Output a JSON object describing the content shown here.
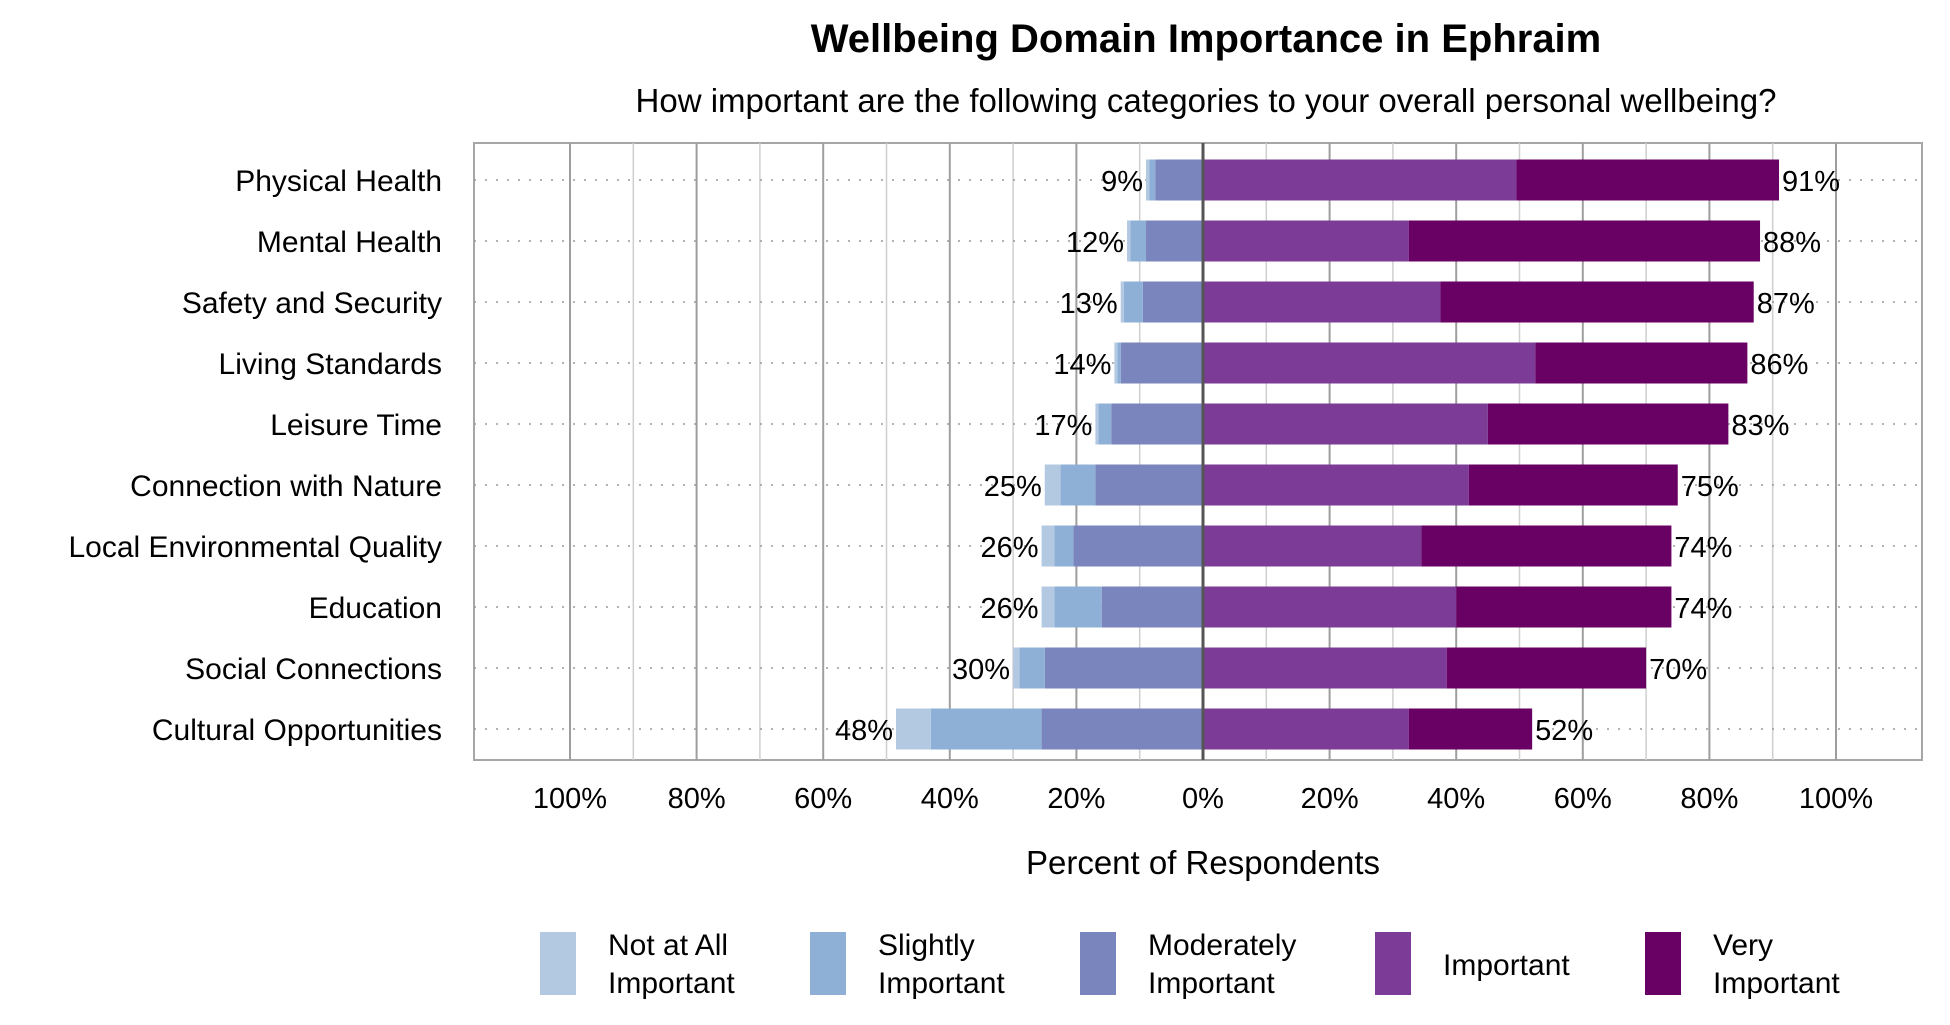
{
  "chart_data": {
    "type": "bar",
    "orientation": "horizontal",
    "stacked": "diverging",
    "title": "Wellbeing Domain Importance in Ephraim",
    "subtitle": "How important are the following categories to your overall personal wellbeing?",
    "xlabel": "Percent of Respondents",
    "ylabel": "",
    "xlim": [
      -100,
      100
    ],
    "x_ticks": [
      "100%",
      "80%",
      "60%",
      "40%",
      "20%",
      "0%",
      "20%",
      "40%",
      "60%",
      "80%",
      "100%"
    ],
    "grid": true,
    "legend_position": "bottom",
    "categories": [
      "Physical Health",
      "Mental Health",
      "Safety and Security",
      "Living Standards",
      "Leisure Time",
      "Connection with Nature",
      "Local Environmental Quality",
      "Education",
      "Social Connections",
      "Cultural Opportunities"
    ],
    "series": [
      {
        "name": "Not at All Important",
        "side": "negative",
        "color": "#b3c9e2",
        "values": [
          0.5,
          0.5,
          0.5,
          0.5,
          0.5,
          2.5,
          2,
          2,
          1,
          5.5
        ]
      },
      {
        "name": "Slightly Important",
        "side": "negative",
        "color": "#8eb0d6",
        "values": [
          1,
          2.5,
          3,
          0.5,
          2,
          5.5,
          3,
          7.5,
          4,
          17.5
        ]
      },
      {
        "name": "Moderately Important",
        "side": "negative",
        "color": "#7a84bd",
        "values": [
          7.5,
          9,
          9.5,
          13,
          14.5,
          17,
          20.5,
          16,
          25,
          25.5
        ]
      },
      {
        "name": "Important",
        "side": "positive",
        "color": "#7b3b96",
        "values": [
          49.5,
          32.5,
          37.5,
          52.5,
          45,
          42,
          34.5,
          40,
          38.5,
          32.5
        ]
      },
      {
        "name": "Very Important",
        "side": "positive",
        "color": "#690063",
        "values": [
          41.5,
          55.5,
          49.5,
          33.5,
          38,
          33,
          39.5,
          34,
          31.5,
          19.5
        ]
      }
    ],
    "negative_totals": [
      "9%",
      "12%",
      "13%",
      "14%",
      "17%",
      "25%",
      "26%",
      "26%",
      "30%",
      "48%"
    ],
    "positive_totals": [
      "91%",
      "88%",
      "87%",
      "86%",
      "83%",
      "75%",
      "74%",
      "74%",
      "70%",
      "52%"
    ]
  }
}
